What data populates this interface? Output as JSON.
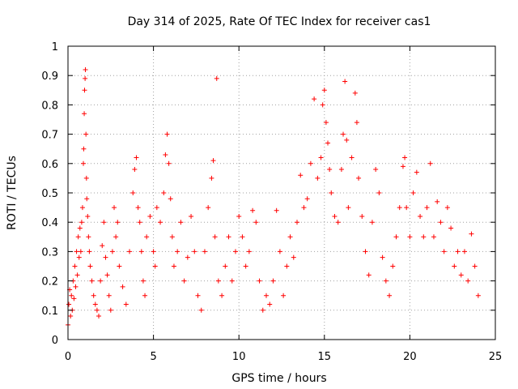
{
  "chart_data": {
    "type": "scatter",
    "title": "Day 314 of 2025, Rate Of TEC Index for receiver cas1",
    "xlabel": "GPS time / hours",
    "ylabel": "ROTI / TECUs",
    "xlim": [
      0,
      25
    ],
    "ylim": [
      0,
      1
    ],
    "x_ticks": [
      0,
      5,
      10,
      15,
      20,
      25
    ],
    "y_ticks": [
      0,
      0.1,
      0.2,
      0.3,
      0.4,
      0.5,
      0.6,
      0.7,
      0.8,
      0.9,
      1
    ],
    "x_tick_labels": [
      "0",
      "5",
      "10",
      "15",
      "20",
      "25"
    ],
    "y_tick_labels": [
      "0",
      "0.1",
      "0.2",
      "0.3",
      "0.4",
      "0.5",
      "0.6",
      "0.7",
      "0.8",
      "0.9",
      "1"
    ],
    "grid": true,
    "marker": "+",
    "color": "#ff0000",
    "series": [
      {
        "points": [
          [
            0.0,
            0.05
          ],
          [
            0.05,
            0.12
          ],
          [
            0.1,
            0.17
          ],
          [
            0.15,
            0.08
          ],
          [
            0.2,
            0.15
          ],
          [
            0.25,
            0.1
          ],
          [
            0.3,
            0.2
          ],
          [
            0.35,
            0.14
          ],
          [
            0.4,
            0.25
          ],
          [
            0.45,
            0.18
          ],
          [
            0.5,
            0.3
          ],
          [
            0.55,
            0.22
          ],
          [
            0.6,
            0.35
          ],
          [
            0.65,
            0.28
          ],
          [
            0.7,
            0.38
          ],
          [
            0.75,
            0.3
          ],
          [
            0.8,
            0.4
          ],
          [
            0.85,
            0.45
          ],
          [
            0.9,
            0.6
          ],
          [
            0.92,
            0.65
          ],
          [
            0.95,
            0.77
          ],
          [
            0.97,
            0.85
          ],
          [
            1.0,
            0.89
          ],
          [
            1.02,
            0.92
          ],
          [
            1.05,
            0.7
          ],
          [
            1.08,
            0.55
          ],
          [
            1.1,
            0.48
          ],
          [
            1.15,
            0.42
          ],
          [
            1.2,
            0.35
          ],
          [
            1.25,
            0.3
          ],
          [
            1.3,
            0.25
          ],
          [
            1.4,
            0.2
          ],
          [
            1.5,
            0.15
          ],
          [
            1.6,
            0.12
          ],
          [
            1.7,
            0.1
          ],
          [
            1.8,
            0.08
          ],
          [
            1.9,
            0.2
          ],
          [
            2.0,
            0.32
          ],
          [
            2.1,
            0.4
          ],
          [
            2.2,
            0.28
          ],
          [
            2.3,
            0.22
          ],
          [
            2.4,
            0.15
          ],
          [
            2.5,
            0.1
          ],
          [
            2.6,
            0.3
          ],
          [
            2.7,
            0.45
          ],
          [
            2.8,
            0.35
          ],
          [
            2.9,
            0.4
          ],
          [
            3.0,
            0.25
          ],
          [
            3.2,
            0.18
          ],
          [
            3.4,
            0.12
          ],
          [
            3.6,
            0.3
          ],
          [
            3.8,
            0.5
          ],
          [
            3.9,
            0.58
          ],
          [
            4.0,
            0.62
          ],
          [
            4.1,
            0.45
          ],
          [
            4.2,
            0.4
          ],
          [
            4.3,
            0.3
          ],
          [
            4.4,
            0.2
          ],
          [
            4.5,
            0.15
          ],
          [
            4.6,
            0.35
          ],
          [
            4.8,
            0.42
          ],
          [
            5.0,
            0.3
          ],
          [
            5.1,
            0.25
          ],
          [
            5.2,
            0.45
          ],
          [
            5.4,
            0.4
          ],
          [
            5.6,
            0.5
          ],
          [
            5.7,
            0.63
          ],
          [
            5.8,
            0.7
          ],
          [
            5.9,
            0.6
          ],
          [
            6.0,
            0.48
          ],
          [
            6.1,
            0.35
          ],
          [
            6.2,
            0.25
          ],
          [
            6.4,
            0.3
          ],
          [
            6.6,
            0.4
          ],
          [
            6.8,
            0.2
          ],
          [
            7.0,
            0.28
          ],
          [
            7.2,
            0.42
          ],
          [
            7.4,
            0.3
          ],
          [
            7.6,
            0.15
          ],
          [
            7.8,
            0.1
          ],
          [
            8.0,
            0.3
          ],
          [
            8.2,
            0.45
          ],
          [
            8.4,
            0.55
          ],
          [
            8.5,
            0.61
          ],
          [
            8.6,
            0.35
          ],
          [
            8.7,
            0.89
          ],
          [
            8.8,
            0.2
          ],
          [
            9.0,
            0.15
          ],
          [
            9.2,
            0.25
          ],
          [
            9.4,
            0.35
          ],
          [
            9.6,
            0.2
          ],
          [
            9.8,
            0.3
          ],
          [
            10.0,
            0.42
          ],
          [
            10.2,
            0.35
          ],
          [
            10.4,
            0.25
          ],
          [
            10.6,
            0.3
          ],
          [
            10.8,
            0.44
          ],
          [
            11.0,
            0.4
          ],
          [
            11.2,
            0.2
          ],
          [
            11.4,
            0.1
          ],
          [
            11.6,
            0.15
          ],
          [
            11.8,
            0.12
          ],
          [
            12.0,
            0.2
          ],
          [
            12.2,
            0.44
          ],
          [
            12.4,
            0.3
          ],
          [
            12.6,
            0.15
          ],
          [
            12.8,
            0.25
          ],
          [
            13.0,
            0.35
          ],
          [
            13.2,
            0.28
          ],
          [
            13.4,
            0.4
          ],
          [
            13.6,
            0.56
          ],
          [
            13.8,
            0.45
          ],
          [
            14.0,
            0.48
          ],
          [
            14.2,
            0.6
          ],
          [
            14.4,
            0.82
          ],
          [
            14.6,
            0.55
          ],
          [
            14.8,
            0.62
          ],
          [
            14.9,
            0.8
          ],
          [
            15.0,
            0.85
          ],
          [
            15.1,
            0.74
          ],
          [
            15.2,
            0.67
          ],
          [
            15.3,
            0.58
          ],
          [
            15.4,
            0.5
          ],
          [
            15.6,
            0.42
          ],
          [
            15.8,
            0.4
          ],
          [
            16.0,
            0.58
          ],
          [
            16.1,
            0.7
          ],
          [
            16.2,
            0.88
          ],
          [
            16.3,
            0.68
          ],
          [
            16.4,
            0.45
          ],
          [
            16.6,
            0.62
          ],
          [
            16.8,
            0.84
          ],
          [
            16.9,
            0.74
          ],
          [
            17.0,
            0.55
          ],
          [
            17.2,
            0.42
          ],
          [
            17.4,
            0.3
          ],
          [
            17.6,
            0.22
          ],
          [
            17.8,
            0.4
          ],
          [
            18.0,
            0.58
          ],
          [
            18.2,
            0.5
          ],
          [
            18.4,
            0.28
          ],
          [
            18.6,
            0.2
          ],
          [
            18.8,
            0.15
          ],
          [
            19.0,
            0.25
          ],
          [
            19.2,
            0.35
          ],
          [
            19.4,
            0.45
          ],
          [
            19.6,
            0.59
          ],
          [
            19.7,
            0.62
          ],
          [
            19.8,
            0.45
          ],
          [
            20.0,
            0.35
          ],
          [
            20.2,
            0.5
          ],
          [
            20.4,
            0.57
          ],
          [
            20.6,
            0.42
          ],
          [
            20.8,
            0.35
          ],
          [
            21.0,
            0.45
          ],
          [
            21.2,
            0.6
          ],
          [
            21.4,
            0.35
          ],
          [
            21.6,
            0.47
          ],
          [
            21.8,
            0.4
          ],
          [
            22.0,
            0.3
          ],
          [
            22.2,
            0.45
          ],
          [
            22.4,
            0.38
          ],
          [
            22.6,
            0.25
          ],
          [
            22.8,
            0.3
          ],
          [
            23.0,
            0.22
          ],
          [
            23.2,
            0.3
          ],
          [
            23.4,
            0.2
          ],
          [
            23.6,
            0.36
          ],
          [
            23.8,
            0.25
          ],
          [
            24.0,
            0.15
          ]
        ]
      }
    ]
  }
}
